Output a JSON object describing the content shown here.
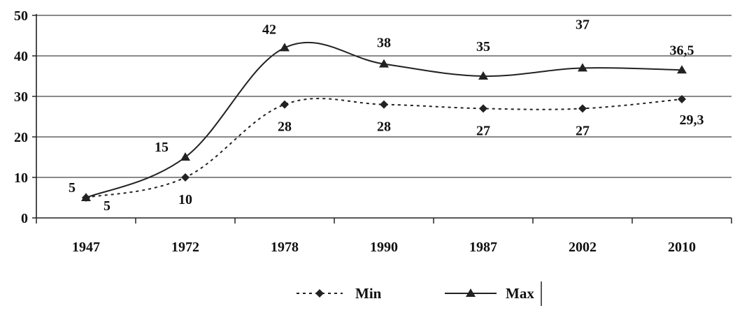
{
  "chart_data": {
    "type": "line",
    "categories": [
      "1947",
      "1972",
      "1978",
      "1990",
      "1987",
      "2002",
      "2010"
    ],
    "ylim": [
      0,
      50
    ],
    "yticks": [
      "0",
      "10",
      "20",
      "30",
      "40",
      "50"
    ],
    "grid": true,
    "legend_position": "bottom",
    "series": [
      {
        "name": "Min",
        "values": [
          5,
          10,
          28,
          28,
          27,
          27,
          29.3
        ],
        "labels": [
          "5",
          "10",
          "28",
          "28",
          "27",
          "27",
          "29,3"
        ],
        "line_style": "dashed",
        "marker": "diamond",
        "color": "#222222"
      },
      {
        "name": "Max",
        "values": [
          5,
          15,
          42,
          38,
          35,
          37,
          36.5
        ],
        "labels": [
          "5",
          "15",
          "42",
          "38",
          "35",
          "37",
          "36,5"
        ],
        "line_style": "solid",
        "marker": "triangle",
        "color": "#222222"
      }
    ]
  }
}
